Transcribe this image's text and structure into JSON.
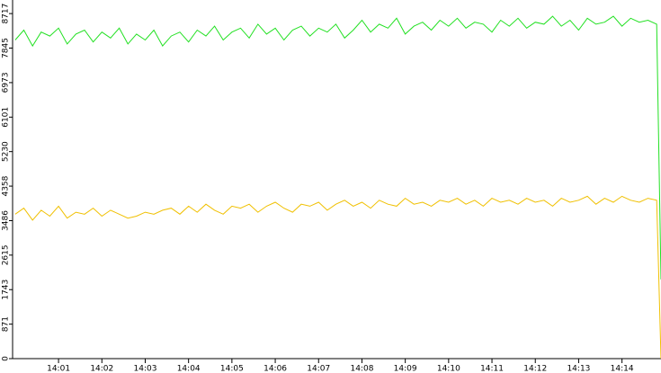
{
  "chart_data": {
    "type": "line",
    "x": [
      0,
      0.2,
      0.4,
      0.6,
      0.8,
      1,
      1.2,
      1.4,
      1.6,
      1.8,
      2,
      2.2,
      2.4,
      2.6,
      2.8,
      3,
      3.2,
      3.4,
      3.6,
      3.8,
      4,
      4.2,
      4.4,
      4.6,
      4.8,
      5,
      5.2,
      5.4,
      5.6,
      5.8,
      6,
      6.2,
      6.4,
      6.6,
      6.8,
      7,
      7.2,
      7.4,
      7.6,
      7.8,
      8,
      8.2,
      8.4,
      8.6,
      8.8,
      9,
      9.2,
      9.4,
      9.6,
      9.8,
      10,
      10.2,
      10.4,
      10.6,
      10.8,
      11,
      11.2,
      11.4,
      11.6,
      11.8,
      12,
      12.2,
      12.4,
      12.6,
      12.8,
      13,
      13.2,
      13.4,
      13.6,
      13.8,
      14,
      14.2,
      14.4,
      14.6,
      14.8,
      14.9
    ],
    "series": [
      {
        "color": "#22e022",
        "values": [
          8050,
          8300,
          7900,
          8250,
          8150,
          8350,
          7950,
          8200,
          8300,
          8000,
          8250,
          8100,
          8350,
          7950,
          8200,
          8050,
          8300,
          7900,
          8150,
          8250,
          8000,
          8300,
          8150,
          8400,
          8050,
          8250,
          8350,
          8100,
          8450,
          8200,
          8350,
          8050,
          8300,
          8400,
          8150,
          8350,
          8250,
          8450,
          8100,
          8300,
          8550,
          8250,
          8450,
          8350,
          8600,
          8200,
          8400,
          8500,
          8300,
          8550,
          8400,
          8600,
          8350,
          8500,
          8450,
          8250,
          8550,
          8400,
          8600,
          8350,
          8500,
          8450,
          8650,
          8400,
          8550,
          8300,
          8600,
          8450,
          8500,
          8650,
          8400,
          8600,
          8500,
          8550,
          8450,
          2000
        ]
      },
      {
        "color": "#f0c000",
        "values": [
          3650,
          3800,
          3500,
          3750,
          3600,
          3850,
          3550,
          3700,
          3650,
          3800,
          3600,
          3750,
          3650,
          3550,
          3600,
          3700,
          3650,
          3750,
          3800,
          3650,
          3850,
          3700,
          3900,
          3750,
          3650,
          3850,
          3800,
          3900,
          3700,
          3850,
          3950,
          3800,
          3700,
          3900,
          3850,
          3950,
          3750,
          3900,
          4000,
          3850,
          3950,
          3800,
          4000,
          3900,
          3850,
          4050,
          3900,
          3950,
          3850,
          4000,
          3950,
          4050,
          3900,
          4000,
          3850,
          4050,
          3950,
          4000,
          3900,
          4050,
          3950,
          4000,
          3850,
          4050,
          3950,
          4000,
          4100,
          3900,
          4050,
          3950,
          4100,
          4000,
          3950,
          4050,
          4000,
          0
        ]
      }
    ],
    "xlim": [
      -0.06,
      14.9
    ],
    "xticks": [
      {
        "value": 1,
        "label": "14:01"
      },
      {
        "value": 2,
        "label": "14:02"
      },
      {
        "value": 3,
        "label": "14:03"
      },
      {
        "value": 4,
        "label": "14:04"
      },
      {
        "value": 5,
        "label": "14:05"
      },
      {
        "value": 6,
        "label": "14:06"
      },
      {
        "value": 7,
        "label": "14:07"
      },
      {
        "value": 8,
        "label": "14:08"
      },
      {
        "value": 9,
        "label": "14:09"
      },
      {
        "value": 10,
        "label": "14:10"
      },
      {
        "value": 11,
        "label": "14:11"
      },
      {
        "value": 12,
        "label": "14:12"
      },
      {
        "value": 13,
        "label": "14:13"
      },
      {
        "value": 14,
        "label": "14:14"
      }
    ],
    "ylim": [
      0,
      9060
    ],
    "yticks": [
      0,
      871,
      1743,
      2615,
      3486,
      4358,
      5230,
      6101,
      6973,
      7845,
      8717
    ]
  }
}
